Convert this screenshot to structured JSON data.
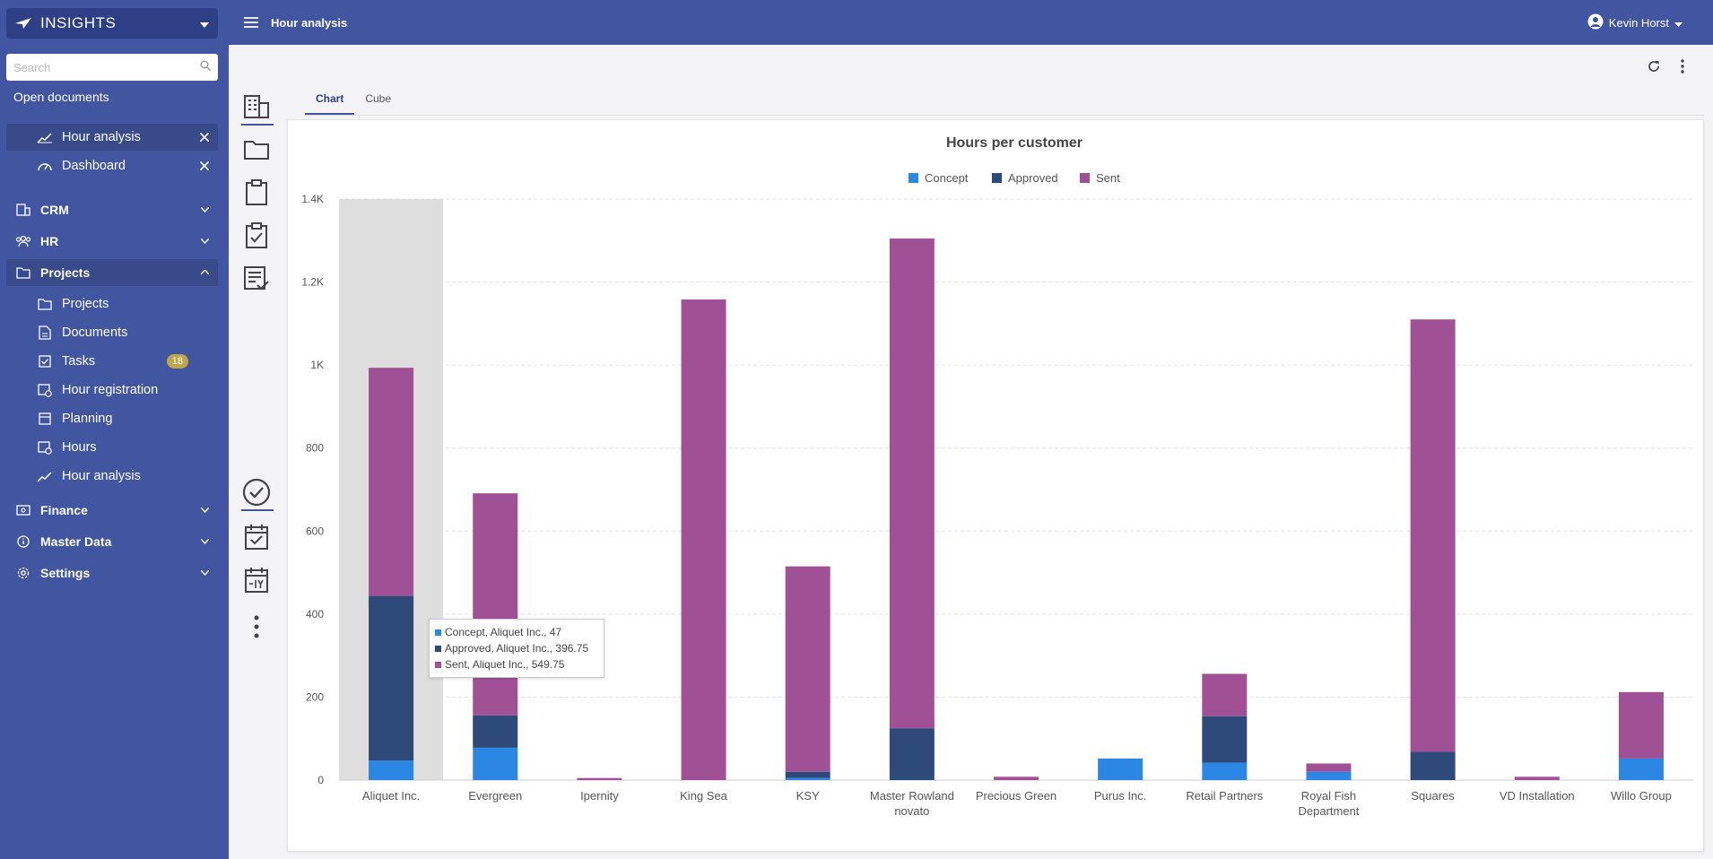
{
  "app": {
    "brand": "INSIGHTS"
  },
  "sidebar": {
    "search_placeholder": "Search",
    "open_documents_title": "Open documents",
    "open_documents": [
      {
        "label": "Hour analysis",
        "icon": "analytics-icon"
      },
      {
        "label": "Dashboard",
        "icon": "dashboard-icon"
      }
    ],
    "groups": {
      "crm": "CRM",
      "hr": "HR",
      "projects": "Projects",
      "finance": "Finance",
      "master_data": "Master Data",
      "settings": "Settings"
    },
    "project_items": [
      {
        "label": "Projects"
      },
      {
        "label": "Documents"
      },
      {
        "label": "Tasks",
        "badge": "18"
      },
      {
        "label": "Hour registration"
      },
      {
        "label": "Planning"
      },
      {
        "label": "Hours"
      },
      {
        "label": "Hour analysis"
      }
    ]
  },
  "topbar": {
    "title": "Hour analysis",
    "user": "Kevin Horst"
  },
  "tabs": {
    "chart": "Chart",
    "cube": "Cube"
  },
  "colors": {
    "concept": "#2b87e3",
    "approved": "#2e4a7a",
    "sent": "#a05095",
    "accent": "#4255a0"
  },
  "tooltip": {
    "lines": [
      "Concept, Aliquet Inc., 47",
      "Approved, Aliquet Inc., 396.75",
      "Sent, Aliquet Inc., 549.75"
    ]
  },
  "chart_data": {
    "type": "bar",
    "stacked": true,
    "title": "Hours per customer",
    "legend_position": "top-center",
    "categories": [
      "Aliquet Inc.",
      "Evergreen",
      "Ipernity",
      "King Sea",
      "KSY",
      "Master Rowland novato",
      "Precious Green",
      "Purus Inc.",
      "Retail Partners",
      "Royal Fish Department",
      "Squares",
      "VD Installation",
      "Willo Group"
    ],
    "series": [
      {
        "name": "Concept",
        "values": [
          47,
          78,
          0,
          0,
          5,
          0,
          0,
          52,
          42,
          20,
          0,
          0,
          52
        ]
      },
      {
        "name": "Approved",
        "values": [
          396.75,
          78,
          0,
          0,
          15,
          125,
          0,
          0,
          112,
          0,
          68,
          0,
          0
        ]
      },
      {
        "name": "Sent",
        "values": [
          549.75,
          535,
          5,
          1158,
          495,
          1180,
          8,
          0,
          102,
          20,
          1042,
          8,
          160
        ]
      }
    ],
    "yticks": [
      "0",
      "200",
      "400",
      "600",
      "800",
      "1K",
      "1.2K",
      "1.4K"
    ],
    "ylim": [
      0,
      1400
    ],
    "grid": true
  }
}
